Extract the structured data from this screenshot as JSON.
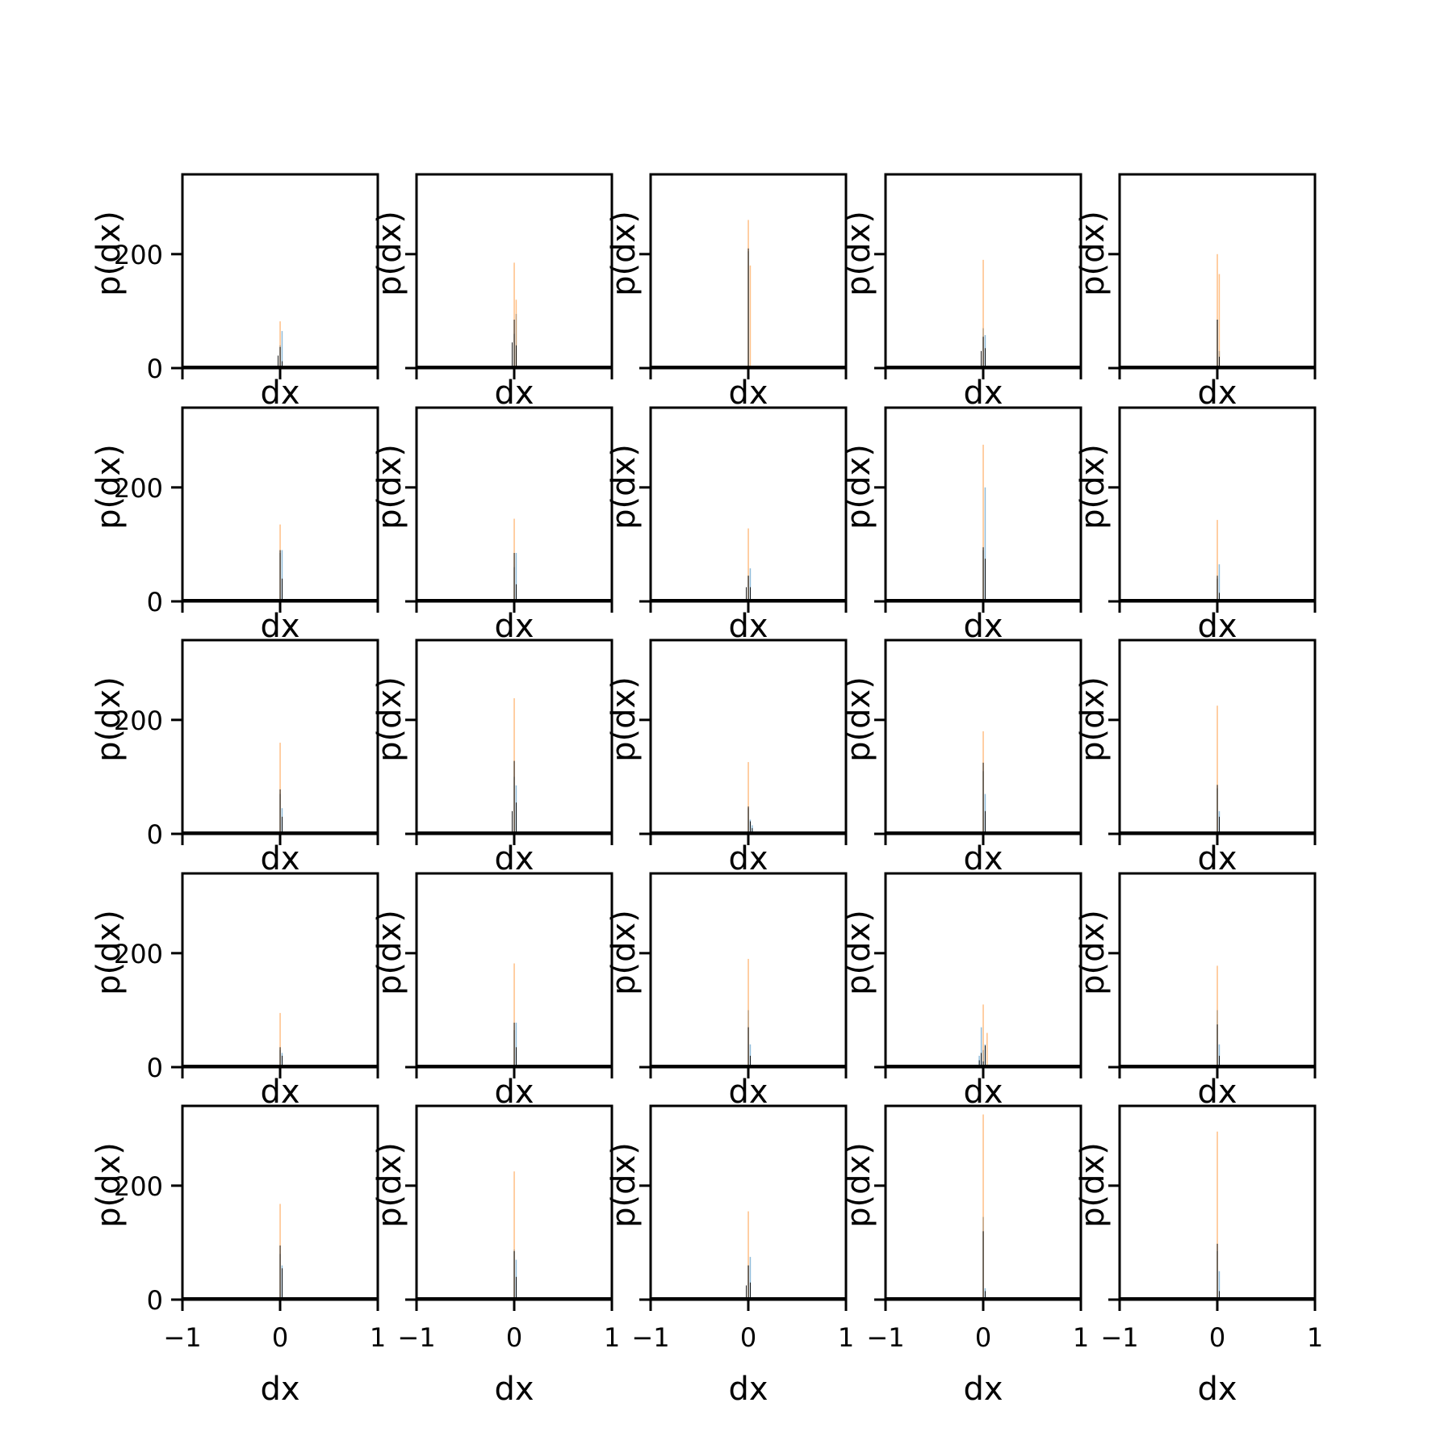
{
  "colors": {
    "series_a": "#1f77b4",
    "series_b": "#ff7f0e",
    "series_c": "#000000"
  },
  "chart_data": {
    "type": "bar",
    "layout": "5x5 grid of histograms",
    "xlabel": "dx",
    "ylabel": "p(dx)",
    "xlim": [
      -1,
      1
    ],
    "ylim": [
      0,
      340
    ],
    "x_ticks": [
      -1,
      0,
      1
    ],
    "x_tick_labels": [
      "−1",
      "0",
      "1"
    ],
    "y_ticks": [
      0,
      200
    ],
    "y_tick_labels": [
      "0",
      "200"
    ],
    "grid": false,
    "legend": "none",
    "bin_width": 0.02,
    "panels": [
      {
        "series": [
          {
            "bins": [
              [
                0.0,
                40
              ],
              [
                0.02,
                65
              ]
            ]
          },
          {
            "bins": [
              [
                0.0,
                82
              ]
            ]
          },
          {
            "bins": [
              [
                -0.02,
                22
              ],
              [
                0.0,
                37
              ],
              [
                0.02,
                12
              ]
            ]
          }
        ]
      },
      {
        "series": [
          {
            "bins": [
              [
                0.0,
                60
              ],
              [
                0.02,
                95
              ]
            ]
          },
          {
            "bins": [
              [
                0.0,
                185
              ],
              [
                0.02,
                120
              ]
            ]
          },
          {
            "bins": [
              [
                -0.02,
                45
              ],
              [
                0.0,
                85
              ],
              [
                0.02,
                40
              ]
            ]
          }
        ]
      },
      {
        "series": [
          {
            "bins": [
              [
                0.0,
                205
              ]
            ]
          },
          {
            "bins": [
              [
                0.0,
                260
              ],
              [
                0.02,
                180
              ]
            ]
          },
          {
            "bins": [
              [
                0.0,
                210
              ]
            ]
          }
        ]
      },
      {
        "series": [
          {
            "bins": [
              [
                0.0,
                70
              ],
              [
                0.02,
                58
              ]
            ]
          },
          {
            "bins": [
              [
                0.0,
                190
              ]
            ]
          },
          {
            "bins": [
              [
                -0.02,
                30
              ],
              [
                0.0,
                55
              ],
              [
                0.02,
                35
              ]
            ]
          }
        ]
      },
      {
        "series": [
          {
            "bins": [
              [
                0.0,
                85
              ],
              [
                0.02,
                30
              ]
            ]
          },
          {
            "bins": [
              [
                0.0,
                200
              ],
              [
                0.02,
                165
              ]
            ]
          },
          {
            "bins": [
              [
                0.0,
                85
              ],
              [
                0.02,
                20
              ]
            ]
          }
        ]
      },
      {
        "series": [
          {
            "bins": [
              [
                0.0,
                85
              ],
              [
                0.02,
                90
              ]
            ]
          },
          {
            "bins": [
              [
                0.0,
                135
              ]
            ]
          },
          {
            "bins": [
              [
                0.0,
                90
              ],
              [
                0.02,
                40
              ]
            ]
          }
        ]
      },
      {
        "series": [
          {
            "bins": [
              [
                0.0,
                60
              ],
              [
                0.02,
                85
              ]
            ]
          },
          {
            "bins": [
              [
                0.0,
                145
              ]
            ]
          },
          {
            "bins": [
              [
                0.0,
                85
              ],
              [
                0.02,
                30
              ]
            ]
          }
        ]
      },
      {
        "series": [
          {
            "bins": [
              [
                0.0,
                45
              ],
              [
                0.02,
                58
              ]
            ]
          },
          {
            "bins": [
              [
                0.0,
                128
              ]
            ]
          },
          {
            "bins": [
              [
                -0.02,
                25
              ],
              [
                0.0,
                45
              ],
              [
                0.02,
                25
              ]
            ]
          }
        ]
      },
      {
        "series": [
          {
            "bins": [
              [
                0.0,
                90
              ],
              [
                0.02,
                200
              ]
            ]
          },
          {
            "bins": [
              [
                0.0,
                275
              ]
            ]
          },
          {
            "bins": [
              [
                0.0,
                95
              ],
              [
                0.02,
                75
              ]
            ]
          }
        ]
      },
      {
        "series": [
          {
            "bins": [
              [
                0.0,
                40
              ],
              [
                0.02,
                65
              ]
            ]
          },
          {
            "bins": [
              [
                0.0,
                143
              ]
            ]
          },
          {
            "bins": [
              [
                0.0,
                45
              ],
              [
                0.02,
                15
              ]
            ]
          }
        ]
      },
      {
        "series": [
          {
            "bins": [
              [
                0.0,
                70
              ],
              [
                0.02,
                45
              ]
            ]
          },
          {
            "bins": [
              [
                0.0,
                160
              ]
            ]
          },
          {
            "bins": [
              [
                0.0,
                78
              ],
              [
                0.02,
                30
              ]
            ]
          }
        ]
      },
      {
        "series": [
          {
            "bins": [
              [
                0.0,
                100
              ],
              [
                0.02,
                85
              ]
            ]
          },
          {
            "bins": [
              [
                0.0,
                238
              ]
            ]
          },
          {
            "bins": [
              [
                -0.02,
                40
              ],
              [
                0.0,
                128
              ],
              [
                0.02,
                55
              ]
            ]
          }
        ]
      },
      {
        "series": [
          {
            "bins": [
              [
                0.0,
                45
              ],
              [
                0.02,
                25
              ],
              [
                0.04,
                15
              ]
            ]
          },
          {
            "bins": [
              [
                0.0,
                126
              ]
            ]
          },
          {
            "bins": [
              [
                0.0,
                48
              ],
              [
                0.02,
                22
              ],
              [
                0.04,
                10
              ]
            ]
          }
        ]
      },
      {
        "series": [
          {
            "bins": [
              [
                0.0,
                110
              ],
              [
                0.02,
                70
              ]
            ]
          },
          {
            "bins": [
              [
                0.0,
                180
              ]
            ]
          },
          {
            "bins": [
              [
                0.0,
                125
              ],
              [
                0.02,
                40
              ]
            ]
          }
        ]
      },
      {
        "series": [
          {
            "bins": [
              [
                0.0,
                80
              ],
              [
                0.02,
                40
              ]
            ]
          },
          {
            "bins": [
              [
                0.0,
                225
              ]
            ]
          },
          {
            "bins": [
              [
                0.0,
                86
              ],
              [
                0.02,
                30
              ]
            ]
          }
        ]
      },
      {
        "series": [
          {
            "bins": [
              [
                0.0,
                30
              ],
              [
                0.02,
                25
              ]
            ]
          },
          {
            "bins": [
              [
                0.0,
                95
              ]
            ]
          },
          {
            "bins": [
              [
                0.0,
                35
              ],
              [
                0.02,
                20
              ]
            ]
          }
        ]
      },
      {
        "series": [
          {
            "bins": [
              [
                0.0,
                65
              ],
              [
                0.02,
                78
              ]
            ]
          },
          {
            "bins": [
              [
                0.0,
                182
              ]
            ]
          },
          {
            "bins": [
              [
                0.0,
                78
              ],
              [
                0.02,
                35
              ]
            ]
          }
        ]
      },
      {
        "series": [
          {
            "bins": [
              [
                0.0,
                100
              ],
              [
                0.02,
                40
              ]
            ]
          },
          {
            "bins": [
              [
                0.0,
                190
              ]
            ]
          },
          {
            "bins": [
              [
                0.0,
                70
              ],
              [
                0.02,
                20
              ]
            ]
          }
        ]
      },
      {
        "series": [
          {
            "bins": [
              [
                -0.04,
                20
              ],
              [
                -0.02,
                70
              ],
              [
                0.0,
                30
              ],
              [
                0.02,
                40
              ]
            ]
          },
          {
            "bins": [
              [
                0.0,
                110
              ],
              [
                0.04,
                60
              ]
            ]
          },
          {
            "bins": [
              [
                -0.04,
                12
              ],
              [
                -0.02,
                25
              ],
              [
                0.0,
                10
              ],
              [
                0.02,
                38
              ]
            ]
          }
        ]
      },
      {
        "series": [
          {
            "bins": [
              [
                0.0,
                100
              ],
              [
                0.02,
                40
              ]
            ]
          },
          {
            "bins": [
              [
                0.0,
                178
              ]
            ]
          },
          {
            "bins": [
              [
                0.0,
                75
              ],
              [
                0.02,
                20
              ]
            ]
          }
        ]
      },
      {
        "series": [
          {
            "bins": [
              [
                0.0,
                80
              ],
              [
                0.02,
                60
              ]
            ]
          },
          {
            "bins": [
              [
                0.0,
                168
              ]
            ]
          },
          {
            "bins": [
              [
                0.0,
                95
              ],
              [
                0.02,
                55
              ]
            ]
          }
        ]
      },
      {
        "series": [
          {
            "bins": [
              [
                0.0,
                88
              ],
              [
                0.02,
                70
              ]
            ]
          },
          {
            "bins": [
              [
                0.0,
                225
              ]
            ]
          },
          {
            "bins": [
              [
                0.0,
                85
              ],
              [
                0.02,
                40
              ]
            ]
          }
        ]
      },
      {
        "series": [
          {
            "bins": [
              [
                0.0,
                60
              ],
              [
                0.02,
                75
              ]
            ]
          },
          {
            "bins": [
              [
                0.0,
                155
              ]
            ]
          },
          {
            "bins": [
              [
                -0.02,
                25
              ],
              [
                0.0,
                60
              ],
              [
                0.02,
                30
              ]
            ]
          }
        ]
      },
      {
        "series": [
          {
            "bins": [
              [
                0.0,
                145
              ],
              [
                0.02,
                20
              ]
            ]
          },
          {
            "bins": [
              [
                0.0,
                325
              ]
            ]
          },
          {
            "bins": [
              [
                0.0,
                120
              ],
              [
                0.02,
                15
              ]
            ]
          }
        ]
      },
      {
        "series": [
          {
            "bins": [
              [
                0.0,
                85
              ],
              [
                0.02,
                50
              ]
            ]
          },
          {
            "bins": [
              [
                0.0,
                295
              ]
            ]
          },
          {
            "bins": [
              [
                0.0,
                98
              ],
              [
                0.02,
                15
              ]
            ]
          }
        ]
      }
    ]
  }
}
